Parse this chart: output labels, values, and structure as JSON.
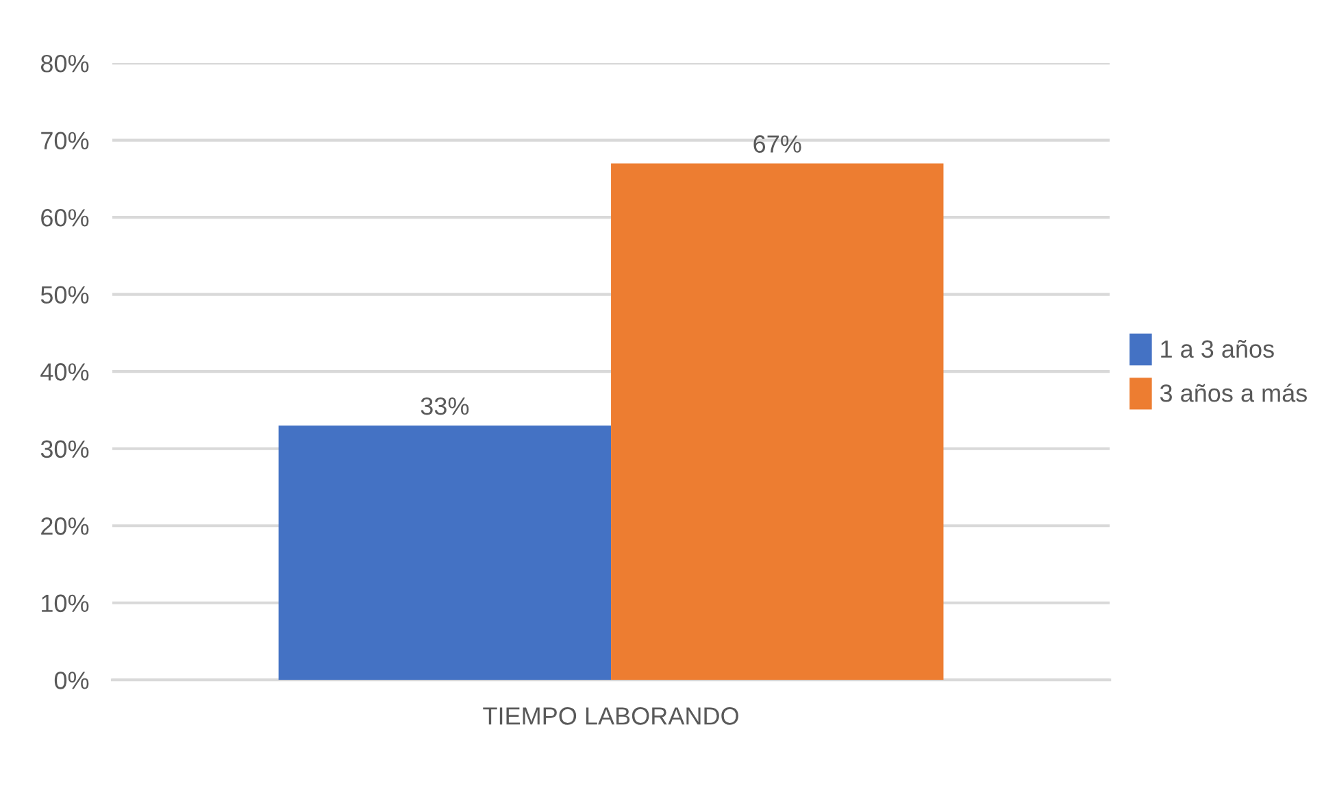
{
  "chart_data": {
    "type": "bar",
    "categories": [
      "TIEMPO LABORANDO"
    ],
    "series": [
      {
        "name": "1 a 3 años",
        "color": "#4472c4",
        "values": [
          33
        ],
        "value_labels": [
          "33%"
        ]
      },
      {
        "name": "3 años a más",
        "color": "#ed7d31",
        "values": [
          67
        ],
        "value_labels": [
          "67%"
        ]
      }
    ],
    "ylim": [
      0,
      80
    ],
    "yticks": [
      {
        "value": 0,
        "label": "0%"
      },
      {
        "value": 10,
        "label": "10%"
      },
      {
        "value": 20,
        "label": "20%"
      },
      {
        "value": 30,
        "label": "30%"
      },
      {
        "value": 40,
        "label": "40%"
      },
      {
        "value": 50,
        "label": "50%"
      },
      {
        "value": 60,
        "label": "60%"
      },
      {
        "value": 70,
        "label": "70%"
      },
      {
        "value": 80,
        "label": "80%"
      }
    ],
    "grid": "y",
    "legend": "right"
  }
}
